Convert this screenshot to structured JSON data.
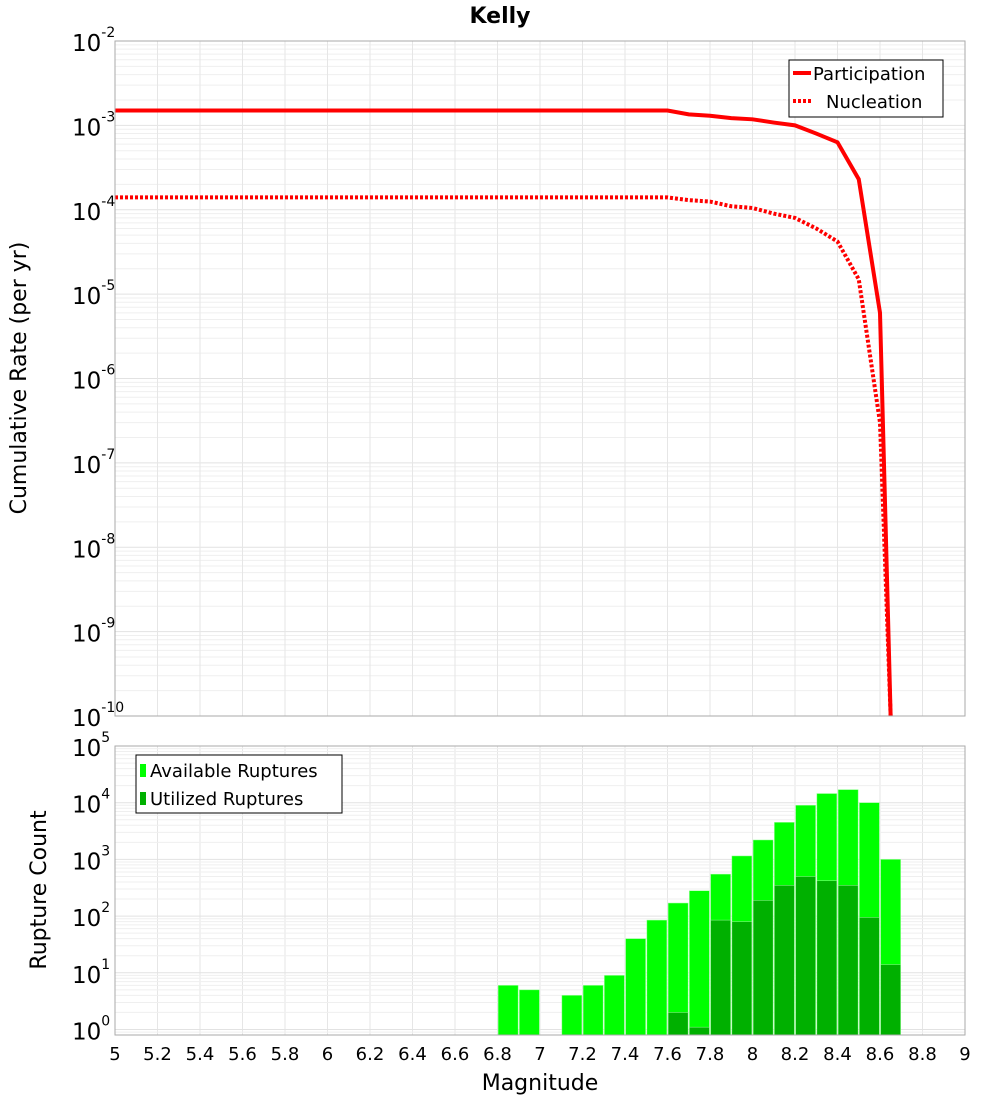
{
  "chart_data": [
    {
      "type": "line",
      "title": "Kelly",
      "xlabel": "",
      "ylabel": "Cumulative Rate (per yr)",
      "yscale": "log",
      "xlim": [
        5,
        9
      ],
      "ylim": [
        1e-10,
        0.01
      ],
      "legend": {
        "placement": "top-right",
        "entries": [
          "Participation",
          "Nucleation"
        ]
      },
      "series": [
        {
          "name": "Participation",
          "style": "solid",
          "color": "#ff0000",
          "x": [
            5,
            7.6,
            7.7,
            7.8,
            7.9,
            8.0,
            8.1,
            8.2,
            8.3,
            8.4,
            8.5,
            8.6,
            8.65
          ],
          "y": [
            0.0015,
            0.0015,
            0.00135,
            0.0013,
            0.00122,
            0.00118,
            0.00108,
            0.001,
            0.0008,
            0.00063,
            0.00023,
            6e-06,
            1e-10
          ]
        },
        {
          "name": "Nucleation",
          "style": "dotted",
          "color": "#ff0000",
          "x": [
            5,
            7.6,
            7.7,
            7.8,
            7.9,
            8.0,
            8.1,
            8.2,
            8.3,
            8.4,
            8.5,
            8.6,
            8.65
          ],
          "y": [
            0.00014,
            0.00014,
            0.00013,
            0.000125,
            0.00011,
            0.000105,
            9e-05,
            8e-05,
            6e-05,
            4.2e-05,
            1.5e-05,
            3e-07,
            1e-10
          ]
        }
      ],
      "yticks": [
        "10",
        "10",
        "10",
        "10",
        "10",
        "10",
        "10",
        "10",
        "10"
      ],
      "ytick_exps": [
        "-2",
        "-3",
        "-4",
        "-5",
        "-6",
        "-7",
        "-8",
        "-9",
        "-10"
      ]
    },
    {
      "type": "bar",
      "xlabel": "Magnitude",
      "ylabel": "Rupture Count",
      "yscale": "log",
      "xlim": [
        5,
        9
      ],
      "ylim": [
        0.8,
        100000.0
      ],
      "legend": {
        "placement": "top-left",
        "entries": [
          "Available Ruptures",
          "Utilized Ruptures"
        ]
      },
      "bin_centers": [
        6.85,
        6.95,
        7.05,
        7.15,
        7.25,
        7.35,
        7.45,
        7.55,
        7.65,
        7.75,
        7.85,
        7.95,
        8.05,
        8.15,
        8.25,
        8.35,
        8.45,
        8.55,
        8.65
      ],
      "series": [
        {
          "name": "Available Ruptures",
          "color": "#00ff00",
          "values": [
            6,
            5,
            0,
            4,
            6,
            9,
            40,
            85,
            170,
            280,
            550,
            1150,
            2200,
            4500,
            9000,
            14500,
            17000,
            10000,
            1000
          ]
        },
        {
          "name": "Utilized Ruptures",
          "color": "#00b000",
          "values": [
            0,
            0,
            0,
            0,
            0,
            0,
            0,
            0,
            2,
            1.1,
            85,
            80,
            190,
            350,
            500,
            420,
            350,
            95,
            14
          ]
        }
      ],
      "yticks": [
        "10",
        "10",
        "10",
        "10",
        "10",
        "10"
      ],
      "ytick_exps": [
        "5",
        "4",
        "3",
        "2",
        "1",
        "0"
      ],
      "xticks": [
        "5",
        "5.2",
        "5.4",
        "5.6",
        "5.8",
        "6",
        "6.2",
        "6.4",
        "6.6",
        "6.8",
        "7",
        "7.2",
        "7.4",
        "7.6",
        "7.8",
        "8",
        "8.2",
        "8.4",
        "8.6",
        "8.8",
        "9"
      ]
    }
  ]
}
